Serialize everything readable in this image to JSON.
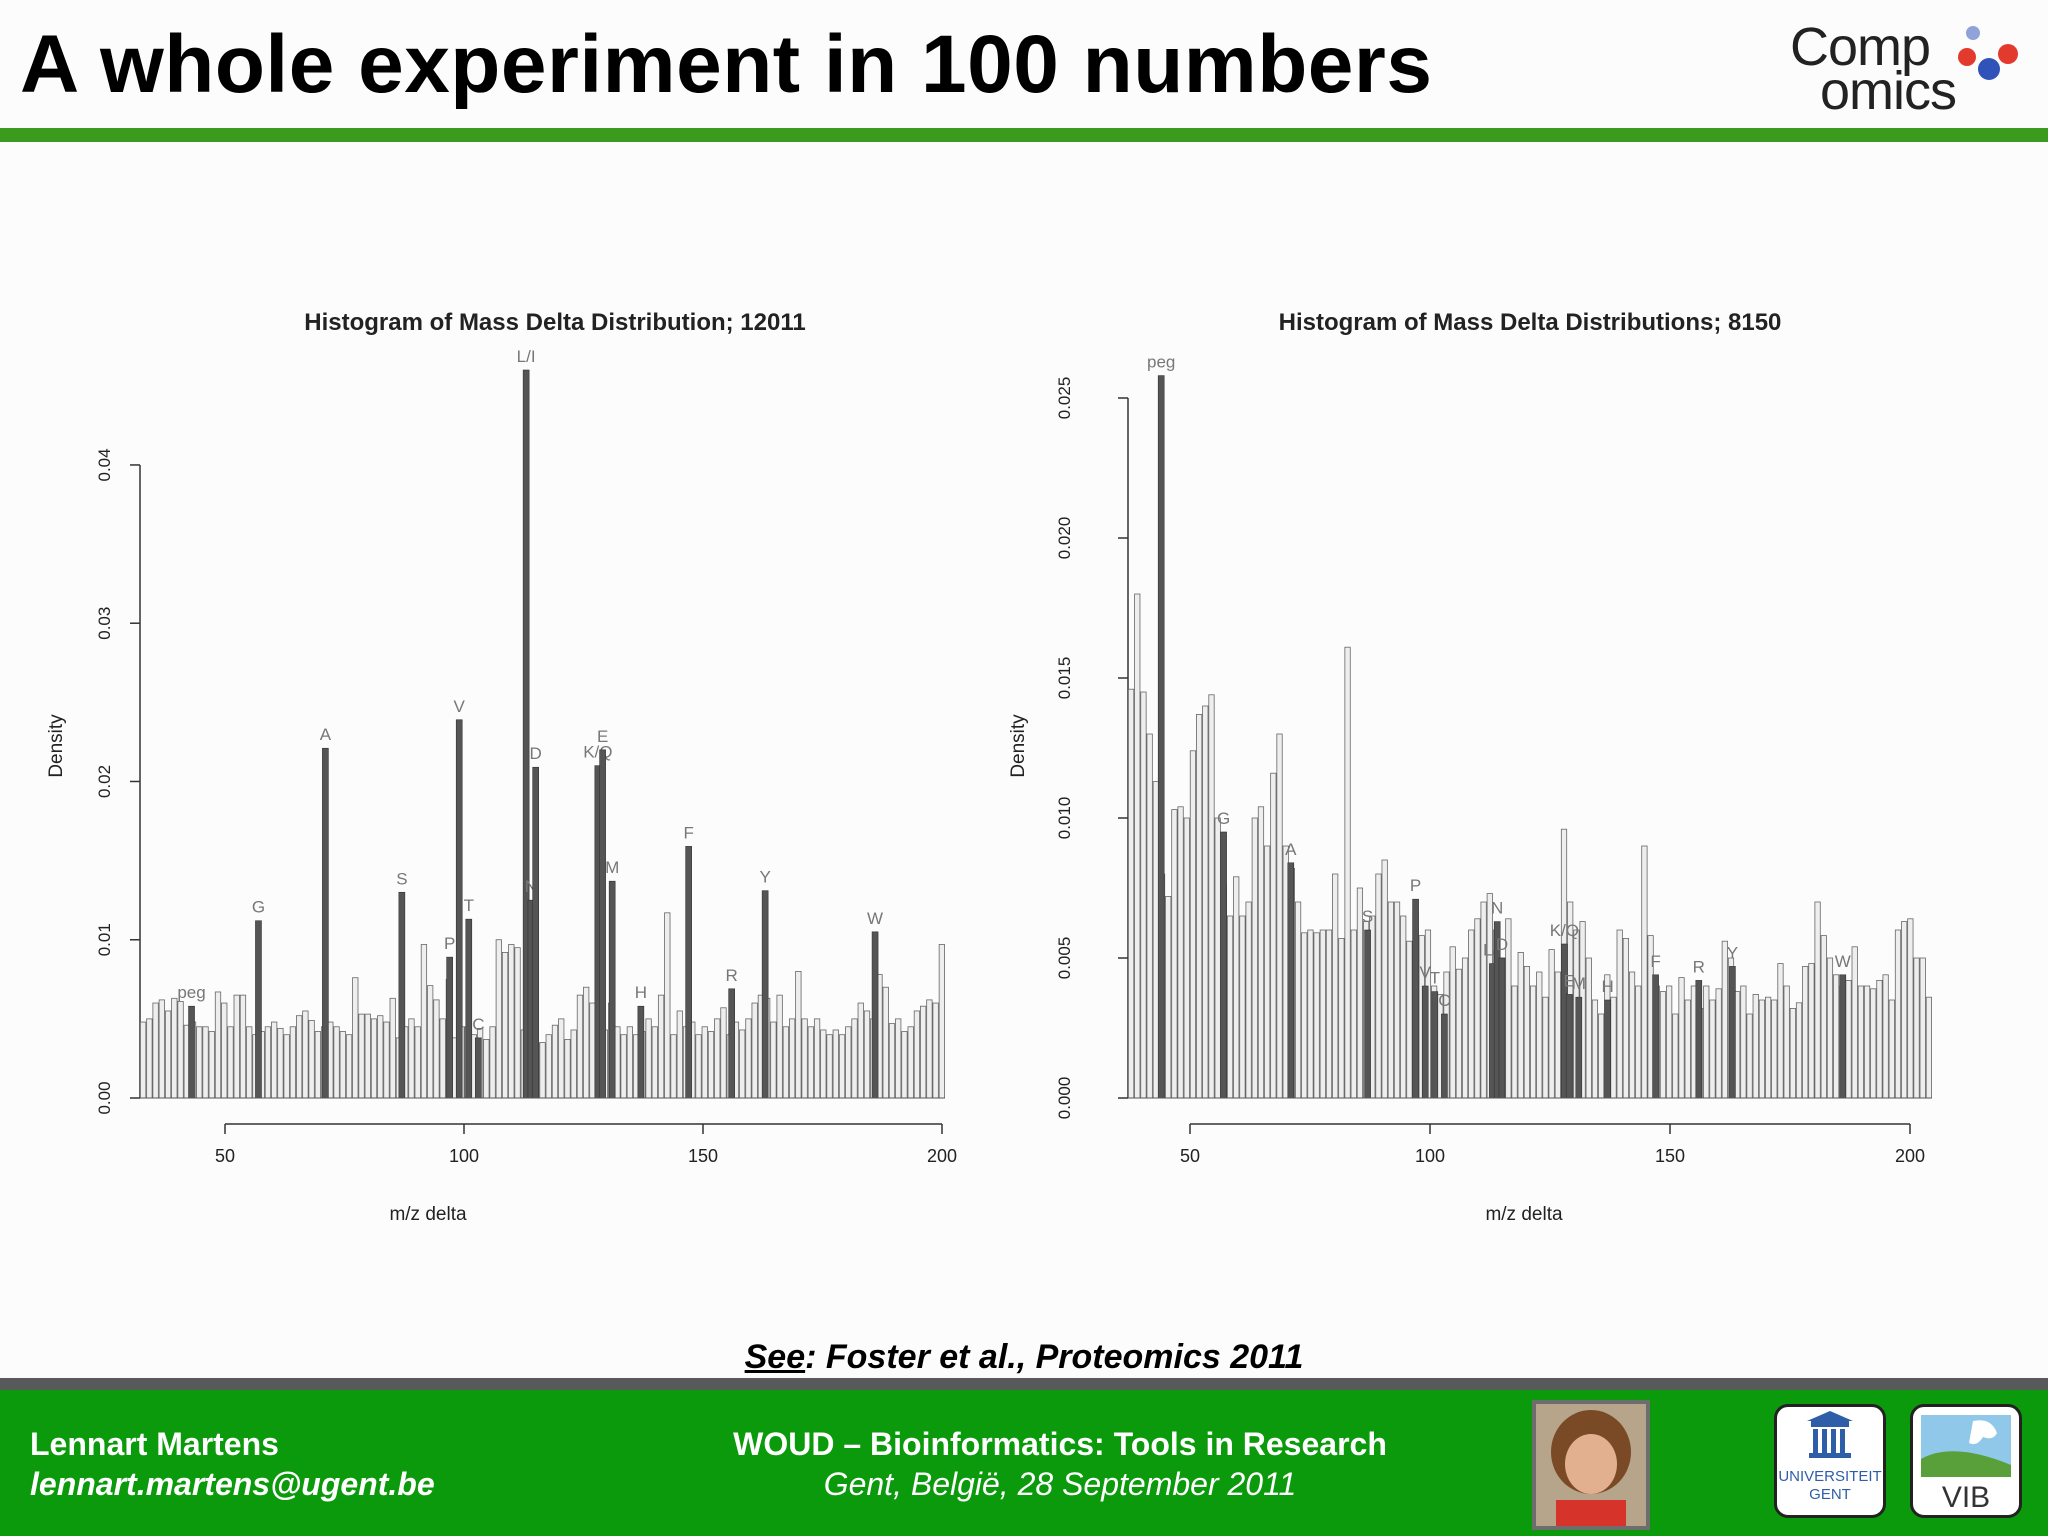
{
  "slide": {
    "title": "A whole experiment in 100 numbers",
    "citation_see": "See",
    "citation_rest": ": Foster et al., Proteomics 2011"
  },
  "logo": {
    "line1": "Comp",
    "line2": "omics"
  },
  "footer": {
    "author_name": "Lennart Martens",
    "author_email": "lennart.martens@ugent.be",
    "event_title": "WOUD – Bioinformatics: Tools in Research",
    "event_place": "Gent, België, 28 September 2011",
    "logo_ugent_line1": "UNIVERSITEIT",
    "logo_ugent_line2": "GENT",
    "logo_vib": "VIB"
  },
  "colors": {
    "accent_green": "#3a9b1e",
    "footer_green": "#0b9a0b",
    "footer_gray": "#58595b",
    "bar_dark": "#555555",
    "bar_light": "#cfcfcf"
  },
  "chart_data": [
    {
      "type": "bar",
      "title": "Histogram of Mass Delta Distribution; 12011",
      "xlabel": "m/z delta",
      "ylabel": "Density",
      "xlim": [
        38,
        200
      ],
      "ylim": [
        0,
        0.046
      ],
      "xticks": [
        50,
        100,
        150,
        200
      ],
      "yticks": [
        0.0,
        0.01,
        0.02,
        0.03,
        0.04
      ],
      "ytick_labels": [
        "0.00",
        "0.01",
        "0.02",
        "0.03",
        "0.04"
      ],
      "background_values": [
        0.0048,
        0.005,
        0.006,
        0.0062,
        0.0055,
        0.0063,
        0.0061,
        0.0046,
        0.0048,
        0.0045,
        0.0045,
        0.0042,
        0.0067,
        0.006,
        0.0045,
        0.0065,
        0.0065,
        0.0045,
        0.004,
        0.0042,
        0.0045,
        0.0048,
        0.0044,
        0.004,
        0.0045,
        0.0052,
        0.0055,
        0.0049,
        0.0042,
        0.0045,
        0.0048,
        0.0045,
        0.0042,
        0.004,
        0.0076,
        0.0053,
        0.0053,
        0.005,
        0.0052,
        0.0048,
        0.0063,
        0.0038,
        0.0045,
        0.005,
        0.0045,
        0.0097,
        0.0071,
        0.0062,
        0.005,
        0.0075,
        0.0038,
        0.0045,
        0.0045,
        0.004,
        0.0044,
        0.0037,
        0.0045,
        0.01,
        0.0092,
        0.0097,
        0.0095,
        0.0043,
        0.005,
        0.0035,
        0.0035,
        0.004,
        0.0046,
        0.005,
        0.0037,
        0.0043,
        0.0065,
        0.007,
        0.006,
        0.0045,
        0.0043,
        0.006,
        0.0045,
        0.004,
        0.0045,
        0.004,
        0.0042,
        0.005,
        0.0045,
        0.0065,
        0.0117,
        0.004,
        0.0055,
        0.0045,
        0.0048,
        0.004,
        0.0045,
        0.0042,
        0.005,
        0.0057,
        0.004,
        0.0048,
        0.0043,
        0.005,
        0.006,
        0.0065,
        0.0063,
        0.0048,
        0.0065,
        0.0045,
        0.005,
        0.008,
        0.005,
        0.0045,
        0.005,
        0.0043,
        0.004,
        0.0043,
        0.004,
        0.0045,
        0.005,
        0.006,
        0.0055,
        0.005,
        0.0078,
        0.007,
        0.0047,
        0.005,
        0.0042,
        0.0045,
        0.0055,
        0.0058,
        0.0062,
        0.006,
        0.0097
      ],
      "peaks": [
        {
          "label": "peg",
          "x": 43.0,
          "y": 0.0058
        },
        {
          "label": "G",
          "x": 57.0,
          "y": 0.0112
        },
        {
          "label": "A",
          "x": 71.0,
          "y": 0.0221
        },
        {
          "label": "S",
          "x": 87.0,
          "y": 0.013
        },
        {
          "label": "P",
          "x": 97.0,
          "y": 0.0089
        },
        {
          "label": "V",
          "x": 99.0,
          "y": 0.0239
        },
        {
          "label": "T",
          "x": 101.0,
          "y": 0.0113
        },
        {
          "label": "C",
          "x": 103.0,
          "y": 0.0038
        },
        {
          "label": "L/I",
          "x": 113.0,
          "y": 0.046
        },
        {
          "label": "N",
          "x": 114.0,
          "y": 0.0125
        },
        {
          "label": "D",
          "x": 115.0,
          "y": 0.0209
        },
        {
          "label": "K/Q",
          "x": 128.0,
          "y": 0.021
        },
        {
          "label": "E",
          "x": 129.0,
          "y": 0.022
        },
        {
          "label": "M",
          "x": 131.0,
          "y": 0.0137
        },
        {
          "label": "H",
          "x": 137.0,
          "y": 0.0058
        },
        {
          "label": "F",
          "x": 147.0,
          "y": 0.0159
        },
        {
          "label": "R",
          "x": 156.0,
          "y": 0.0069
        },
        {
          "label": "Y",
          "x": 163.0,
          "y": 0.0131
        },
        {
          "label": "W",
          "x": 186.0,
          "y": 0.0105
        }
      ]
    },
    {
      "type": "bar",
      "title": "Histogram of Mass Delta Distributions; 8150",
      "xlabel": "m/z delta",
      "ylabel": "Density",
      "xlim": [
        38,
        200
      ],
      "ylim": [
        0,
        0.026
      ],
      "xticks": [
        50,
        100,
        150,
        200
      ],
      "yticks": [
        0.0,
        0.005,
        0.01,
        0.015,
        0.02,
        0.025
      ],
      "ytick_labels": [
        "0.000",
        "0.005",
        "0.010",
        "0.015",
        "0.020",
        "0.025"
      ],
      "background_values": [
        0.0146,
        0.018,
        0.0145,
        0.013,
        0.0113,
        0.008,
        0.0072,
        0.0103,
        0.0104,
        0.01,
        0.0124,
        0.0137,
        0.014,
        0.0144,
        0.01,
        0.0076,
        0.0065,
        0.0079,
        0.0065,
        0.007,
        0.01,
        0.0104,
        0.009,
        0.0116,
        0.013,
        0.009,
        0.0082,
        0.007,
        0.0059,
        0.006,
        0.0059,
        0.006,
        0.006,
        0.008,
        0.0057,
        0.0161,
        0.006,
        0.0075,
        0.0063,
        0.0065,
        0.008,
        0.0085,
        0.007,
        0.007,
        0.0065,
        0.0056,
        0.0066,
        0.0058,
        0.006,
        0.004,
        0.0037,
        0.0045,
        0.0054,
        0.0046,
        0.005,
        0.006,
        0.0064,
        0.007,
        0.0073,
        0.006,
        0.005,
        0.0064,
        0.004,
        0.0052,
        0.0047,
        0.004,
        0.0045,
        0.0036,
        0.0053,
        0.0045,
        0.0096,
        0.007,
        0.006,
        0.0063,
        0.005,
        0.0035,
        0.003,
        0.0044,
        0.0036,
        0.006,
        0.0057,
        0.0045,
        0.004,
        0.009,
        0.0058,
        0.004,
        0.0038,
        0.004,
        0.003,
        0.0043,
        0.0035,
        0.004,
        0.0032,
        0.004,
        0.0035,
        0.0039,
        0.0056,
        0.005,
        0.0038,
        0.004,
        0.003,
        0.0037,
        0.0035,
        0.0036,
        0.0035,
        0.0048,
        0.004,
        0.0032,
        0.0034,
        0.0047,
        0.0048,
        0.007,
        0.0058,
        0.005,
        0.0044,
        0.004,
        0.0042,
        0.0054,
        0.004,
        0.004,
        0.0039,
        0.0042,
        0.0044,
        0.0035,
        0.006,
        0.0063,
        0.0064,
        0.005,
        0.005,
        0.0036
      ],
      "peaks": [
        {
          "label": "peg",
          "x": 44.0,
          "y": 0.0258
        },
        {
          "label": "G",
          "x": 57.0,
          "y": 0.0095
        },
        {
          "label": "A",
          "x": 71.0,
          "y": 0.0084
        },
        {
          "label": "S",
          "x": 87.0,
          "y": 0.006
        },
        {
          "label": "P",
          "x": 97.0,
          "y": 0.0071
        },
        {
          "label": "V",
          "x": 99.0,
          "y": 0.004
        },
        {
          "label": "T",
          "x": 101.0,
          "y": 0.0038
        },
        {
          "label": "C",
          "x": 103.0,
          "y": 0.003
        },
        {
          "label": "L/I",
          "x": 113.0,
          "y": 0.0048
        },
        {
          "label": "N",
          "x": 114.0,
          "y": 0.0063
        },
        {
          "label": "D",
          "x": 115.0,
          "y": 0.005
        },
        {
          "label": "K/Q",
          "x": 128.0,
          "y": 0.0055
        },
        {
          "label": "E",
          "x": 129.0,
          "y": 0.0037
        },
        {
          "label": "M",
          "x": 131.0,
          "y": 0.0036
        },
        {
          "label": "H",
          "x": 137.0,
          "y": 0.0035
        },
        {
          "label": "F",
          "x": 147.0,
          "y": 0.0044
        },
        {
          "label": "R",
          "x": 156.0,
          "y": 0.0042
        },
        {
          "label": "Y",
          "x": 163.0,
          "y": 0.0047
        },
        {
          "label": "W",
          "x": 186.0,
          "y": 0.0044
        }
      ]
    }
  ]
}
